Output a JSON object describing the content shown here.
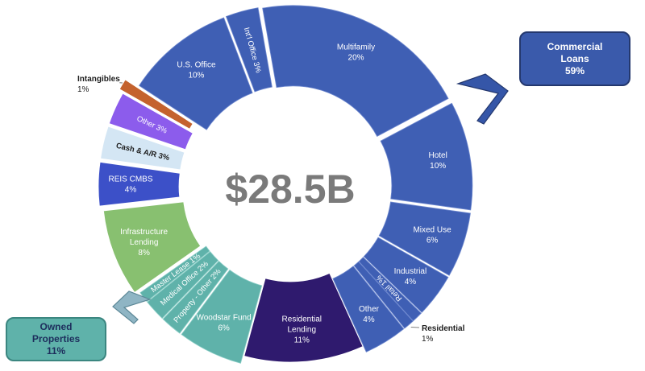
{
  "chart_data": {
    "type": "pie",
    "center_label": "$28.5B",
    "colors": {
      "commercial": "#3f5fb4",
      "commercial_dark": "#3556a8",
      "owned": "#5fb2aa",
      "residential_lending": "#2f1a6e",
      "infrastructure": "#88c070",
      "reis_cmbs": "#3c50c8",
      "cash_ar": "#d4e6f4",
      "other": "#8c5cec",
      "intangibles": "#c4622e",
      "center_text": "#7a7a7a"
    },
    "groups": [
      {
        "name": "Commercial Loans",
        "percent": "59%"
      },
      {
        "name": "Owned Properties",
        "percent": "11%"
      }
    ],
    "slices": [
      {
        "label": "Multifamily",
        "percent": "20%",
        "value": 20,
        "group": "commercial"
      },
      {
        "label": "Hotel",
        "percent": "10%",
        "value": 10,
        "group": "commercial"
      },
      {
        "label": "Mixed Use",
        "percent": "6%",
        "value": 6,
        "group": "commercial"
      },
      {
        "label": "Industrial",
        "percent": "4%",
        "value": 4,
        "group": "commercial"
      },
      {
        "label": "Retail",
        "percent": "1%",
        "value": 1,
        "group": "commercial"
      },
      {
        "label": "Residential",
        "percent": "1%",
        "value": 1,
        "group": "commercial"
      },
      {
        "label": "Other",
        "percent": "4%",
        "value": 4,
        "group": "commercial"
      },
      {
        "label": "Residential Lending",
        "percent": "11%",
        "value": 11,
        "group": "residential_lending"
      },
      {
        "label": "Woodstar Fund",
        "percent": "6%",
        "value": 6,
        "group": "owned"
      },
      {
        "label": "Property - Other",
        "percent": "2%",
        "value": 2,
        "group": "owned"
      },
      {
        "label": "Medical Office",
        "percent": "2%",
        "value": 2,
        "group": "owned"
      },
      {
        "label": "Master Lease",
        "percent": "1%",
        "value": 1,
        "group": "owned"
      },
      {
        "label": "Infrastructure Lending",
        "percent": "8%",
        "value": 8,
        "group": "infrastructure"
      },
      {
        "label": "REIS CMBS",
        "percent": "4%",
        "value": 4,
        "group": "reis_cmbs"
      },
      {
        "label": "Cash & A/R",
        "percent": "3%",
        "value": 3,
        "group": "cash_ar"
      },
      {
        "label": "Other",
        "percent": "3%",
        "value": 3,
        "group": "other"
      },
      {
        "label": "Intangibles",
        "percent": "1%",
        "value": 1,
        "group": "intangibles"
      },
      {
        "label": "U.S. Office",
        "percent": "10%",
        "value": 10,
        "group": "commercial"
      },
      {
        "label": "Int'l Office",
        "percent": "3%",
        "value": 3,
        "group": "commercial"
      }
    ]
  },
  "callouts": {
    "commercial": {
      "line1": "Commercial",
      "line2": "Loans",
      "percent": "59%"
    },
    "owned": {
      "line1": "Owned",
      "line2": "Properties",
      "percent": "11%"
    }
  }
}
